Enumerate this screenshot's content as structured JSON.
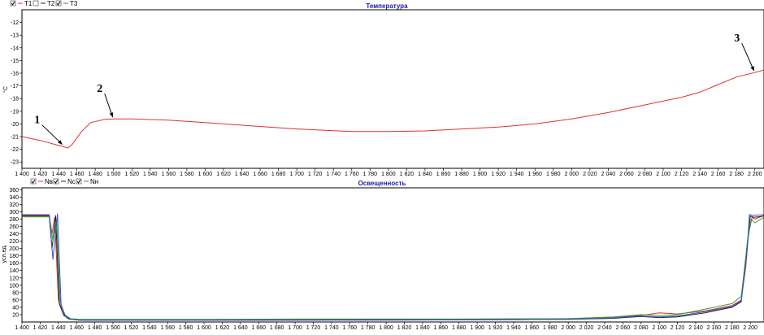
{
  "chart_data": [
    {
      "type": "line",
      "title": "Температура",
      "ylabel": "°C",
      "ylim": [
        -23.5,
        -11
      ],
      "y_ticks": [
        -12,
        -13,
        -14,
        -15,
        -16,
        -17,
        -18,
        -19,
        -20,
        -21,
        -22,
        -23
      ],
      "xlim": [
        1400,
        2210
      ],
      "x_ticks": [
        "1 400",
        "1 420",
        "1 440",
        "1 460",
        "1 480",
        "1 500",
        "1 520",
        "1 540",
        "1 560",
        "1 580",
        "1 600",
        "1 620",
        "1 640",
        "1 660",
        "1 680",
        "1 700",
        "1 720",
        "1 740",
        "1 760",
        "1 780",
        "1 800",
        "1 820",
        "1 840",
        "1 860",
        "1 880",
        "1 900",
        "1 920",
        "1 940",
        "1 960",
        "1 980",
        "2 000",
        "2 020",
        "2 040",
        "2 060",
        "2 080",
        "2 100",
        "2 120",
        "2 140",
        "2 160",
        "2 180",
        "2 200"
      ],
      "grid": false,
      "legend": [
        {
          "name": "T1",
          "checked": true,
          "color": "#e03030"
        },
        {
          "name": "T2",
          "checked": false,
          "color": "#202020"
        },
        {
          "name": "T3",
          "checked": true,
          "color": "#30a030"
        }
      ],
      "series": [
        {
          "name": "T1",
          "color": "#e03030",
          "x": [
            1400,
            1420,
            1440,
            1450,
            1455,
            1465,
            1475,
            1490,
            1500,
            1520,
            1560,
            1600,
            1640,
            1700,
            1760,
            1800,
            1840,
            1880,
            1920,
            1960,
            2000,
            2040,
            2080,
            2120,
            2140,
            2160,
            2180,
            2200,
            2210
          ],
          "y": [
            -21.0,
            -21.3,
            -21.7,
            -21.9,
            -21.6,
            -20.6,
            -19.9,
            -19.65,
            -19.6,
            -19.6,
            -19.7,
            -19.9,
            -20.1,
            -20.4,
            -20.6,
            -20.6,
            -20.55,
            -20.4,
            -20.25,
            -20.0,
            -19.6,
            -19.1,
            -18.5,
            -17.9,
            -17.5,
            -16.9,
            -16.3,
            -15.95,
            -15.75
          ]
        }
      ],
      "annotations": [
        {
          "label": "1",
          "x": 1445,
          "y": -21.75
        },
        {
          "label": "2",
          "x": 1500,
          "y": -19.6
        },
        {
          "label": "3",
          "x": 2200,
          "y": -15.95
        }
      ]
    },
    {
      "type": "line",
      "title": "Освещенность",
      "ylabel": "усл.ед.",
      "ylim": [
        0,
        365
      ],
      "y_ticks": [
        360,
        340,
        320,
        300,
        280,
        260,
        240,
        220,
        200,
        180,
        160,
        140,
        120,
        100,
        80,
        60,
        40,
        20
      ],
      "xlim": [
        1400,
        2215
      ],
      "x_ticks": [
        "1 400",
        "1 420",
        "1 440",
        "1 460",
        "1 480",
        "1 500",
        "1 520",
        "1 540",
        "1 560",
        "1 580",
        "1 600",
        "1 620",
        "1 640",
        "1 660",
        "1 680",
        "1 700",
        "1 720",
        "1 740",
        "1 760",
        "1 780",
        "1 800",
        "1 820",
        "1 840",
        "1 860",
        "1 880",
        "1 900",
        "1 920",
        "1 940",
        "1 960",
        "1 980",
        "2 000",
        "2 020",
        "2 040",
        "2 060",
        "2 080",
        "2 100",
        "2 120",
        "2 140",
        "2 160",
        "2 180",
        "2 200"
      ],
      "grid": false,
      "legend": [
        {
          "name": "Nв",
          "checked": true,
          "color": "#e03030"
        },
        {
          "name": "Nс",
          "checked": true,
          "color": "#202020"
        },
        {
          "name": "Nн",
          "checked": true,
          "color": "#30a030"
        }
      ],
      "series": [
        {
          "name": "Nв",
          "color": "#e03030",
          "x": [
            1400,
            1430,
            1433,
            1436,
            1440,
            1445,
            1450,
            1460,
            1500,
            1600,
            1700,
            1800,
            1900,
            2000,
            2050,
            2080,
            2100,
            2120,
            2150,
            2180,
            2190,
            2195,
            2198,
            2202,
            2205,
            2215
          ],
          "y": [
            290,
            290,
            240,
            285,
            60,
            25,
            10,
            6,
            6,
            6,
            7,
            7,
            8,
            9,
            12,
            18,
            25,
            22,
            30,
            45,
            60,
            150,
            240,
            285,
            280,
            290
          ]
        },
        {
          "name": "Nс",
          "color": "#202020",
          "x": [
            1400,
            1430,
            1433,
            1437,
            1441,
            1446,
            1452,
            1462,
            1500,
            1600,
            1700,
            1800,
            1900,
            2000,
            2050,
            2080,
            2100,
            2120,
            2150,
            2180,
            2190,
            2196,
            2200,
            2204,
            2215
          ],
          "y": [
            288,
            288,
            200,
            290,
            50,
            18,
            8,
            5,
            5,
            5,
            5,
            6,
            6,
            7,
            10,
            15,
            12,
            14,
            25,
            40,
            55,
            200,
            288,
            285,
            288
          ]
        },
        {
          "name": "Nн",
          "color": "#30a030",
          "x": [
            1400,
            1430,
            1434,
            1438,
            1442,
            1447,
            1453,
            1463,
            1500,
            1600,
            1700,
            1800,
            1900,
            2000,
            2050,
            2080,
            2100,
            2120,
            2150,
            2180,
            2190,
            2197,
            2201,
            2205,
            2215
          ],
          "y": [
            286,
            286,
            220,
            280,
            55,
            20,
            9,
            7,
            7,
            7,
            8,
            8,
            8,
            9,
            14,
            20,
            18,
            20,
            35,
            50,
            70,
            220,
            280,
            270,
            285
          ]
        },
        {
          "name": "",
          "color": "#3050d0",
          "x": [
            1400,
            1430,
            1434,
            1439,
            1443,
            1448,
            1455,
            1465,
            1500,
            1600,
            1700,
            1800,
            1900,
            2000,
            2050,
            2080,
            2100,
            2120,
            2150,
            2180,
            2190,
            2196,
            2199,
            2203,
            2215
          ],
          "y": [
            292,
            292,
            170,
            295,
            45,
            15,
            7,
            5,
            5,
            5,
            5,
            5,
            6,
            7,
            11,
            16,
            14,
            16,
            28,
            42,
            58,
            180,
            292,
            290,
            292
          ]
        }
      ]
    }
  ]
}
